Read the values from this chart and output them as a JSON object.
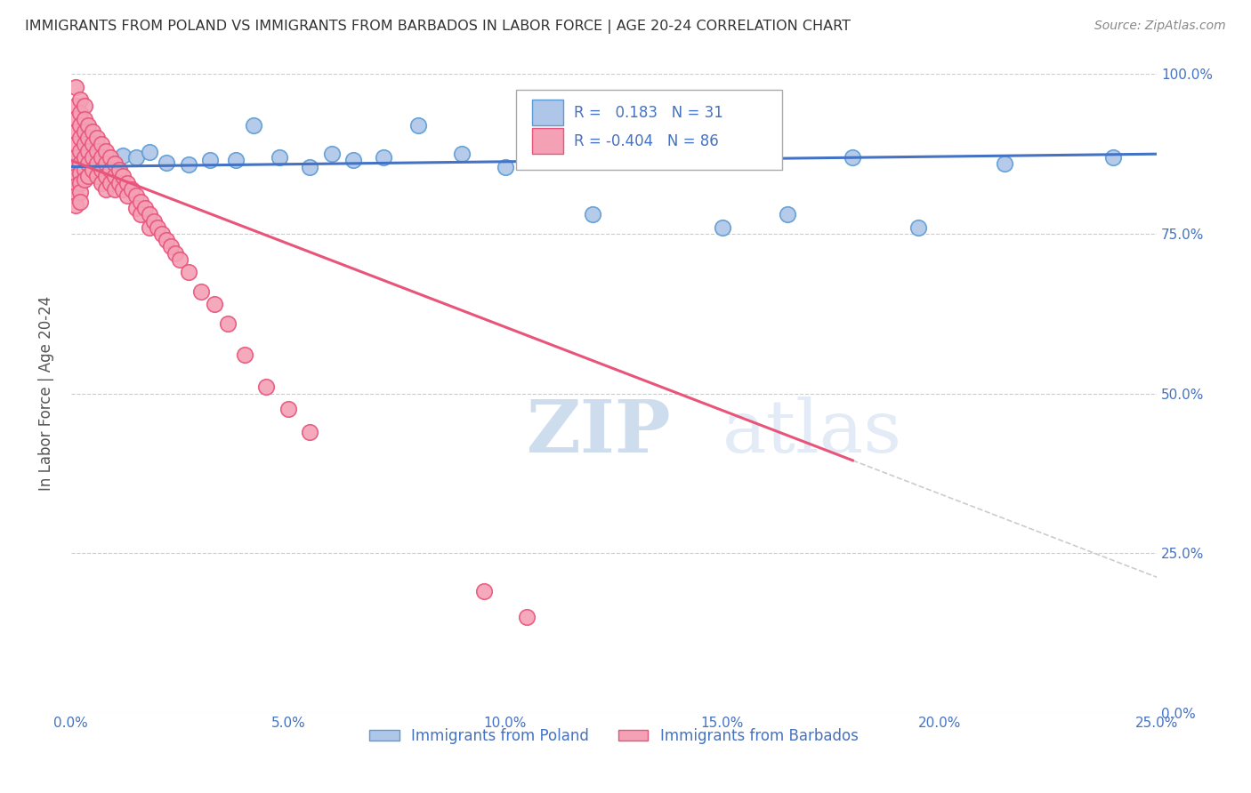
{
  "title": "IMMIGRANTS FROM POLAND VS IMMIGRANTS FROM BARBADOS IN LABOR FORCE | AGE 20-24 CORRELATION CHART",
  "source": "Source: ZipAtlas.com",
  "ylabel": "In Labor Force | Age 20-24",
  "xlim": [
    0.0,
    0.25
  ],
  "ylim": [
    0.0,
    1.0
  ],
  "xtick_labels": [
    "0.0%",
    "5.0%",
    "10.0%",
    "15.0%",
    "20.0%",
    "25.0%"
  ],
  "ytick_labels": [
    "0.0%",
    "25.0%",
    "50.0%",
    "75.0%",
    "100.0%"
  ],
  "ytick_positions": [
    0.0,
    0.25,
    0.5,
    0.75,
    1.0
  ],
  "xtick_positions": [
    0.0,
    0.05,
    0.1,
    0.15,
    0.2,
    0.25
  ],
  "poland_color": "#aec6e8",
  "barbados_color": "#f4a0b5",
  "poland_edge_color": "#5b9bd5",
  "barbados_edge_color": "#e8547a",
  "trend_poland_color": "#4472c4",
  "trend_barbados_color": "#e8547a",
  "R_poland": 0.183,
  "N_poland": 31,
  "R_barbados": -0.404,
  "N_barbados": 86,
  "poland_x": [
    0.001,
    0.002,
    0.003,
    0.005,
    0.007,
    0.01,
    0.012,
    0.015,
    0.018,
    0.022,
    0.027,
    0.032,
    0.038,
    0.042,
    0.048,
    0.055,
    0.06,
    0.065,
    0.072,
    0.08,
    0.09,
    0.1,
    0.11,
    0.12,
    0.135,
    0.15,
    0.165,
    0.18,
    0.195,
    0.215,
    0.24
  ],
  "poland_y": [
    0.855,
    0.87,
    0.865,
    0.875,
    0.862,
    0.858,
    0.872,
    0.87,
    0.878,
    0.862,
    0.858,
    0.865,
    0.865,
    0.92,
    0.87,
    0.855,
    0.875,
    0.865,
    0.87,
    0.92,
    0.875,
    0.855,
    0.87,
    0.78,
    0.865,
    0.76,
    0.78,
    0.87,
    0.76,
    0.86,
    0.87
  ],
  "barbados_x_cluster": [
    0.001,
    0.001,
    0.001,
    0.001,
    0.001,
    0.001,
    0.001,
    0.001,
    0.001,
    0.001,
    0.001,
    0.002,
    0.002,
    0.002,
    0.002,
    0.002,
    0.002,
    0.002,
    0.002,
    0.002,
    0.002,
    0.003,
    0.003,
    0.003,
    0.003,
    0.003,
    0.003,
    0.003,
    0.004,
    0.004,
    0.004,
    0.004,
    0.004,
    0.005,
    0.005,
    0.005,
    0.005,
    0.006,
    0.006,
    0.006,
    0.006,
    0.007,
    0.007,
    0.007,
    0.007,
    0.008,
    0.008,
    0.008,
    0.008,
    0.009,
    0.009,
    0.009,
    0.01,
    0.01,
    0.01,
    0.011,
    0.011,
    0.012,
    0.012,
    0.013,
    0.013,
    0.014,
    0.015,
    0.015,
    0.016,
    0.016,
    0.017,
    0.018,
    0.018,
    0.019,
    0.02,
    0.021,
    0.022,
    0.023,
    0.024,
    0.025,
    0.027,
    0.03,
    0.033,
    0.036,
    0.04,
    0.045,
    0.05,
    0.055,
    0.095,
    0.105
  ],
  "barbados_y_cluster": [
    0.98,
    0.95,
    0.93,
    0.91,
    0.89,
    0.87,
    0.855,
    0.84,
    0.825,
    0.81,
    0.795,
    0.96,
    0.94,
    0.92,
    0.9,
    0.88,
    0.86,
    0.845,
    0.83,
    0.815,
    0.8,
    0.95,
    0.93,
    0.91,
    0.89,
    0.87,
    0.85,
    0.835,
    0.92,
    0.9,
    0.88,
    0.86,
    0.84,
    0.91,
    0.89,
    0.87,
    0.85,
    0.9,
    0.88,
    0.86,
    0.84,
    0.89,
    0.87,
    0.85,
    0.83,
    0.88,
    0.86,
    0.84,
    0.82,
    0.87,
    0.85,
    0.83,
    0.86,
    0.84,
    0.82,
    0.85,
    0.83,
    0.84,
    0.82,
    0.83,
    0.81,
    0.82,
    0.81,
    0.79,
    0.8,
    0.78,
    0.79,
    0.78,
    0.76,
    0.77,
    0.76,
    0.75,
    0.74,
    0.73,
    0.72,
    0.71,
    0.69,
    0.66,
    0.64,
    0.61,
    0.56,
    0.51,
    0.475,
    0.44,
    0.19,
    0.15
  ],
  "watermark_zip": "ZIP",
  "watermark_atlas": "atlas",
  "background_color": "#ffffff",
  "grid_color": "#cccccc",
  "title_color": "#333333",
  "axis_label_color": "#555555",
  "tick_color": "#4472c4",
  "watermark_color": "#d8e8f5"
}
